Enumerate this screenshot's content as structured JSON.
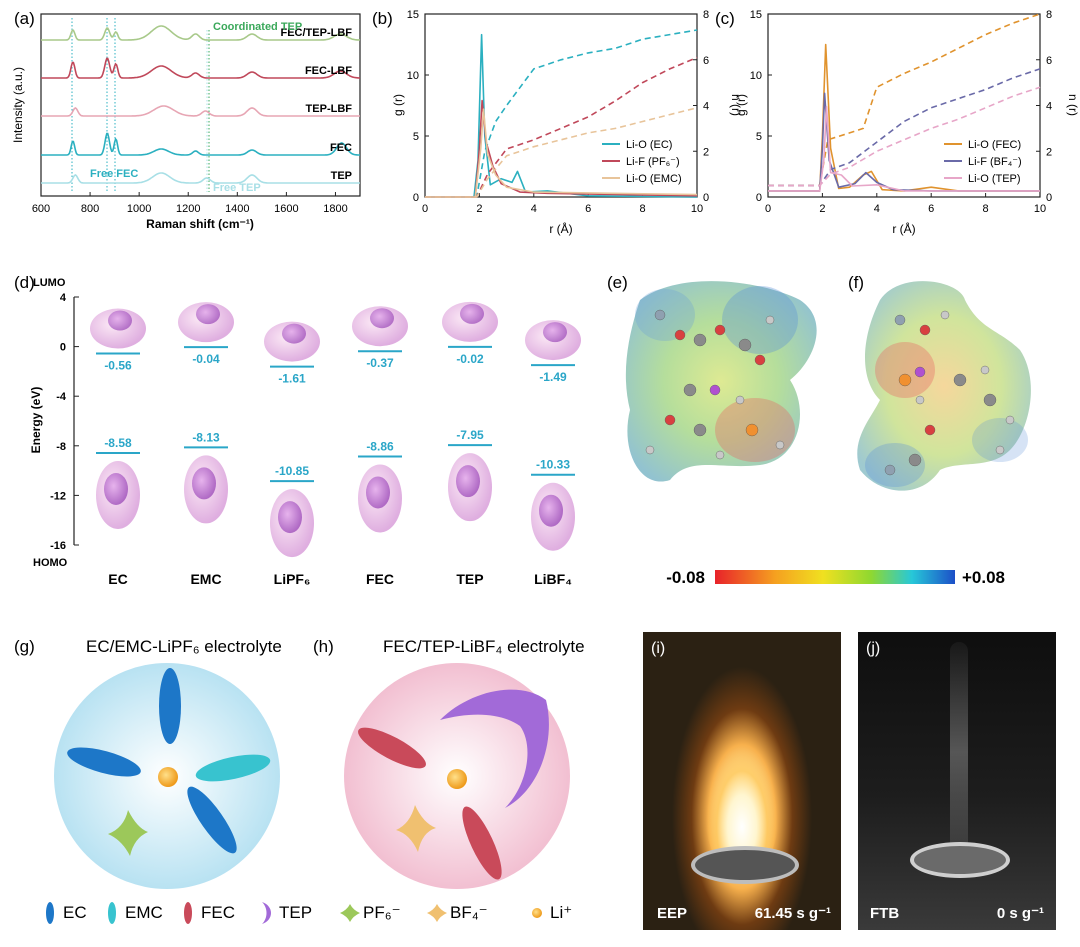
{
  "panels": {
    "a": "(a)",
    "b": "(b)",
    "c": "(c)",
    "d": "(d)",
    "e": "(e)",
    "f": "(f)",
    "g": "(g)",
    "h": "(h)",
    "i": "(i)",
    "j": "(j)"
  },
  "chart_data": [
    {
      "type": "line",
      "panel": "a",
      "xlabel": "Raman shift (cm⁻¹)",
      "ylabel": "Intensity (a.u.)",
      "xlim": [
        600,
        1900
      ],
      "xticks": [
        600,
        800,
        1000,
        1200,
        1400,
        1600,
        1800
      ],
      "series": [
        {
          "name": "FEC/TEP-LBF",
          "color": "#a8c98a"
        },
        {
          "name": "FEC-LBF",
          "color": "#c0485a"
        },
        {
          "name": "TEP-LBF",
          "color": "#e7a6b4"
        },
        {
          "name": "FEC",
          "color": "#2bb0c0"
        },
        {
          "name": "TEP",
          "color": "#a8dfe6"
        }
      ],
      "annotations": [
        "Coordinated TEP",
        "Free FEC",
        "Free TEP"
      ],
      "annotation_colors": [
        "#3aa85a",
        "#2bb0c0",
        "#a8dfe6"
      ]
    },
    {
      "type": "line",
      "panel": "b",
      "xlabel": "r (Å)",
      "ylabel": "g (r)",
      "y2label": "n (r)",
      "xlim": [
        0,
        10
      ],
      "ylim": [
        0,
        15
      ],
      "y2lim": [
        0,
        8
      ],
      "xticks": [
        0,
        2,
        4,
        6,
        8,
        10
      ],
      "yticks": [
        0,
        5,
        10,
        15
      ],
      "y2ticks": [
        0,
        2,
        4,
        6,
        8
      ],
      "series": [
        {
          "name": "Li-O (EC)",
          "color": "#2bb0c0",
          "g": [
            [
              0,
              0
            ],
            [
              1.8,
              0
            ],
            [
              1.95,
              3
            ],
            [
              2.08,
              13.3
            ],
            [
              2.2,
              5
            ],
            [
              2.4,
              1
            ],
            [
              2.8,
              1.5
            ],
            [
              3.2,
              1.2
            ],
            [
              3.4,
              2.1
            ],
            [
              3.7,
              0.4
            ],
            [
              4.5,
              0.5
            ],
            [
              6,
              0.1
            ],
            [
              10,
              0
            ]
          ],
          "n": [
            [
              0,
              0
            ],
            [
              1.9,
              0
            ],
            [
              2.2,
              2.0
            ],
            [
              2.6,
              3.3
            ],
            [
              3.0,
              4.0
            ],
            [
              4,
              5.6
            ],
            [
              5,
              6.0
            ],
            [
              6,
              6.3
            ],
            [
              7,
              6.5
            ],
            [
              8,
              6.9
            ],
            [
              10,
              7.3
            ]
          ]
        },
        {
          "name": "Li-F (PF₆⁻)",
          "color": "#c0485a",
          "g": [
            [
              0,
              0
            ],
            [
              1.85,
              0
            ],
            [
              2.0,
              4
            ],
            [
              2.1,
              7.9
            ],
            [
              2.25,
              4.5
            ],
            [
              2.5,
              2.5
            ],
            [
              2.8,
              1.1
            ],
            [
              3.5,
              0.4
            ],
            [
              4.5,
              0.3
            ],
            [
              10,
              0.1
            ]
          ],
          "n": [
            [
              0,
              0
            ],
            [
              1.9,
              0
            ],
            [
              2.3,
              1.0
            ],
            [
              3,
              2.1
            ],
            [
              4,
              2.5
            ],
            [
              5,
              3.0
            ],
            [
              6,
              3.5
            ],
            [
              7,
              4.2
            ],
            [
              8,
              5.0
            ],
            [
              9,
              5.6
            ],
            [
              10,
              6.1
            ]
          ]
        },
        {
          "name": "Li-O (EMC)",
          "color": "#e8c49a",
          "g": [
            [
              0,
              0
            ],
            [
              1.85,
              0
            ],
            [
              2.05,
              4
            ],
            [
              2.15,
              7.2
            ],
            [
              2.3,
              3.5
            ],
            [
              2.6,
              1.8
            ],
            [
              3,
              0.8
            ],
            [
              4,
              0.4
            ],
            [
              10,
              0.2
            ]
          ],
          "n": [
            [
              0,
              0
            ],
            [
              1.9,
              0
            ],
            [
              2.3,
              0.8
            ],
            [
              3,
              1.8
            ],
            [
              4,
              2.2
            ],
            [
              5,
              2.5
            ],
            [
              6,
              2.8
            ],
            [
              7,
              3.0
            ],
            [
              8,
              3.3
            ],
            [
              9,
              3.6
            ],
            [
              10,
              3.9
            ]
          ]
        }
      ]
    },
    {
      "type": "line",
      "panel": "c",
      "xlabel": "r (Å)",
      "ylabel": "g (r)",
      "y2label": "n (r)",
      "xlim": [
        0,
        10
      ],
      "ylim": [
        0,
        15
      ],
      "y2lim": [
        0,
        8
      ],
      "xticks": [
        0,
        2,
        4,
        6,
        8,
        10
      ],
      "yticks": [
        0,
        5,
        10,
        15
      ],
      "y2ticks": [
        0,
        2,
        4,
        6,
        8
      ],
      "series": [
        {
          "name": "Li-O (FEC)",
          "color": "#e0932e",
          "g": [
            [
              0,
              0.5
            ],
            [
              1.9,
              0.5
            ],
            [
              2.0,
              5
            ],
            [
              2.12,
              12.5
            ],
            [
              2.3,
              4
            ],
            [
              2.6,
              0.7
            ],
            [
              3.0,
              0.8
            ],
            [
              3.5,
              1.8
            ],
            [
              3.8,
              2.1
            ],
            [
              4.2,
              0.6
            ],
            [
              5,
              0.5
            ],
            [
              6,
              0.8
            ],
            [
              7,
              0.5
            ],
            [
              10,
              0.5
            ]
          ],
          "n": [
            [
              0,
              0.5
            ],
            [
              1.9,
              0.5
            ],
            [
              2.2,
              2.5
            ],
            [
              3,
              2.8
            ],
            [
              3.5,
              3.0
            ],
            [
              4,
              4.8
            ],
            [
              5,
              5.4
            ],
            [
              6,
              5.9
            ],
            [
              7,
              6.5
            ],
            [
              8,
              7.1
            ],
            [
              9,
              7.6
            ],
            [
              10,
              8.0
            ]
          ]
        },
        {
          "name": "Li-F (BF₄⁻)",
          "color": "#6a6aa8",
          "g": [
            [
              0,
              0.5
            ],
            [
              1.9,
              0.5
            ],
            [
              2.0,
              4
            ],
            [
              2.08,
              8.5
            ],
            [
              2.25,
              3
            ],
            [
              2.6,
              0.8
            ],
            [
              3.2,
              1.1
            ],
            [
              3.6,
              2.0
            ],
            [
              4.0,
              1.2
            ],
            [
              4.6,
              0.6
            ],
            [
              6,
              0.5
            ],
            [
              10,
              0.5
            ]
          ],
          "n": [
            [
              0,
              0.5
            ],
            [
              1.9,
              0.5
            ],
            [
              2.3,
              1.2
            ],
            [
              3,
              1.5
            ],
            [
              4,
              2.4
            ],
            [
              5,
              3.3
            ],
            [
              6,
              3.9
            ],
            [
              7,
              4.3
            ],
            [
              8,
              4.7
            ],
            [
              9,
              5.2
            ],
            [
              10,
              5.6
            ]
          ]
        },
        {
          "name": "Li-O (TEP)",
          "color": "#e7a6c8",
          "g": [
            [
              0,
              0.5
            ],
            [
              1.9,
              0.5
            ],
            [
              2.05,
              3
            ],
            [
              2.15,
              7.4
            ],
            [
              2.3,
              2
            ],
            [
              2.7,
              1.8
            ],
            [
              3.1,
              0.9
            ],
            [
              4.0,
              1.0
            ],
            [
              5,
              0.5
            ],
            [
              10,
              0.5
            ]
          ],
          "n": [
            [
              0,
              0.5
            ],
            [
              1.9,
              0.5
            ],
            [
              2.3,
              1.0
            ],
            [
              3,
              1.3
            ],
            [
              4,
              2.0
            ],
            [
              5,
              2.5
            ],
            [
              6,
              3.0
            ],
            [
              7,
              3.4
            ],
            [
              8,
              3.9
            ],
            [
              9,
              4.4
            ],
            [
              10,
              4.8
            ]
          ]
        }
      ]
    },
    {
      "type": "scatter",
      "panel": "d",
      "ylabel": "Energy (eV)",
      "ylim": [
        -16,
        4
      ],
      "yticks": [
        4,
        0,
        -4,
        -8,
        -12,
        -16
      ],
      "top_label": "LUMO",
      "bottom_label": "HOMO",
      "categories": [
        "EC",
        "EMC",
        "LiPF6",
        "FEC",
        "TEP",
        "LiBF4"
      ],
      "lumo": [
        -0.56,
        -0.04,
        -1.61,
        -0.37,
        -0.02,
        -1.49
      ],
      "homo": [
        -8.58,
        -8.13,
        -10.85,
        -8.86,
        -7.95,
        -10.33
      ],
      "lumo_labels": [
        "-0.56",
        "-0.04",
        "-1.61",
        "-0.37",
        "-0.02",
        "-1.49"
      ],
      "homo_labels": [
        "-8.58",
        "-8.13",
        "-10.85",
        "-8.86",
        "-7.95",
        "-10.33"
      ],
      "level_color": "#2aa6c8"
    }
  ],
  "colorbar": {
    "min_label": "-0.08",
    "max_label": "+0.08"
  },
  "schematics": {
    "g_title": "EC/EMC-LiPF₆ electrolyte",
    "h_title": "FEC/TEP-LiBF₄ electrolyte"
  },
  "legend": {
    "items": [
      "EC",
      "EMC",
      "FEC",
      "TEP",
      "PF₆⁻",
      "BF₄⁻",
      "Li⁺"
    ]
  },
  "photos": {
    "i_label": "EEP",
    "i_value": "61.45 s g⁻¹",
    "j_label": "FTB",
    "j_value": "0 s g⁻¹"
  },
  "colors": {
    "ec": "#1d77c8",
    "emc": "#38c3cf",
    "fec": "#c94a5a",
    "tep": "#a26ad8",
    "pf6": "#9cc85a",
    "bf4": "#f0c070",
    "li": "#f0a020",
    "circle_g": "#cbe9f4",
    "circle_h": "#f6d3df"
  }
}
